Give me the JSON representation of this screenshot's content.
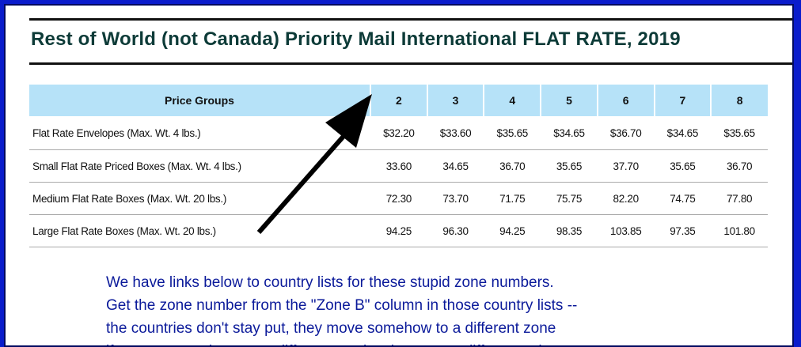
{
  "title": "Rest of World (not Canada) Priority Mail International  FLAT RATE, 2019",
  "table": {
    "headers": [
      "Price Groups",
      "2",
      "3",
      "4",
      "5",
      "6",
      "7",
      "8"
    ],
    "rows": [
      [
        "Flat Rate Envelopes (Max. Wt. 4 lbs.)",
        "$32.20",
        "$33.60",
        "$35.65",
        "$34.65",
        "$36.70",
        "$34.65",
        "$35.65"
      ],
      [
        "Small Flat Rate Priced Boxes (Max. Wt. 4 lbs.)",
        "33.60",
        "34.65",
        "36.70",
        "35.65",
        "37.70",
        "35.65",
        "36.70"
      ],
      [
        "Medium Flat Rate Boxes (Max. Wt. 20 lbs.)",
        "72.30",
        "73.70",
        "71.75",
        "75.75",
        "82.20",
        "74.75",
        "77.80"
      ],
      [
        "Large Flat Rate Boxes (Max. Wt. 20 lbs.)",
        "94.25",
        "96.30",
        "94.25",
        "98.35",
        "103.85",
        "97.35",
        "101.80"
      ]
    ]
  },
  "note": [
    "We have links below to country lists for these stupid zone numbers.",
    "Get the zone number from the \"Zone B\" column in those country lists --",
    "the countries don't stay put, they move somehow to a different zone",
    "if you try to go there on a different service that uses a different column."
  ],
  "colors": {
    "border": "#0a1ccc",
    "title": "#0d3b38",
    "header_bg": "#b6e2f8",
    "note": "#0b1a9a"
  },
  "icons": {
    "arrow": "arrow-up-right-icon"
  }
}
